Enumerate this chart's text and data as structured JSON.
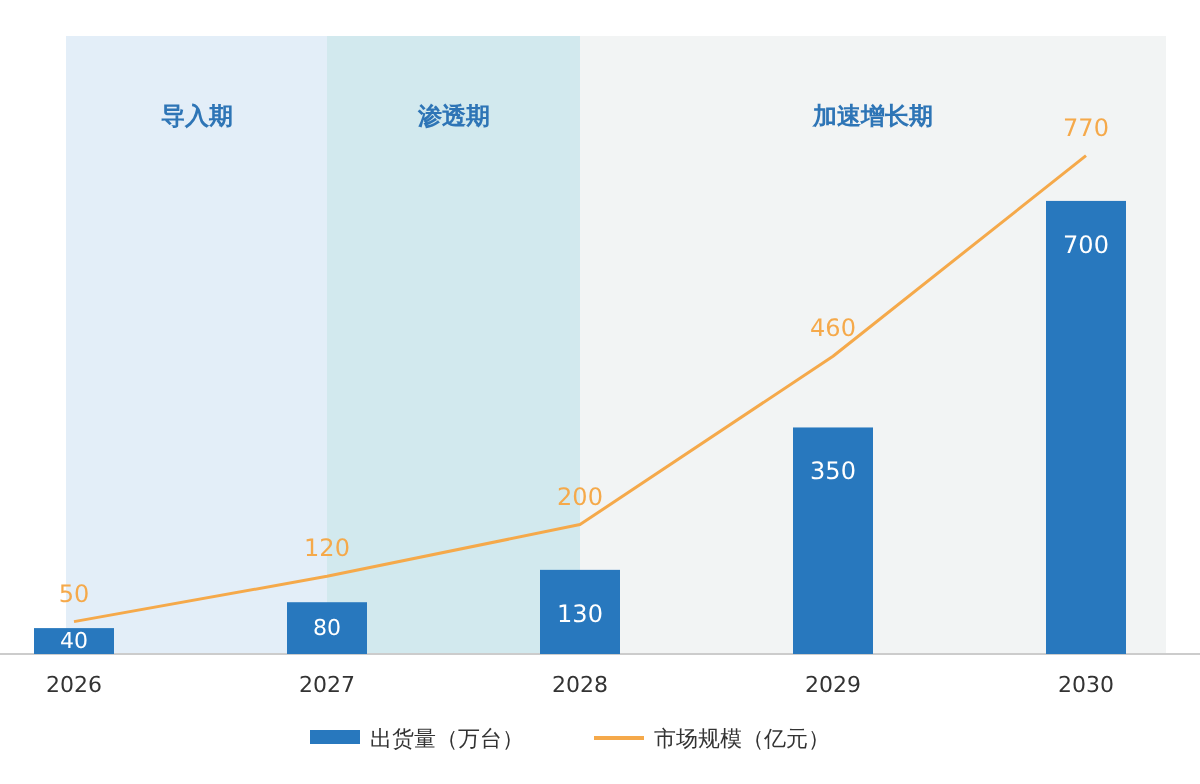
{
  "chart_data": {
    "type": "bar",
    "categories": [
      "2026",
      "2027",
      "2028",
      "2029",
      "2030"
    ],
    "series": [
      {
        "name": "出货量（万台）",
        "color": "#2878be",
        "values": [
          40,
          80,
          130,
          350,
          700
        ]
      },
      {
        "name": "市场规模（亿元）",
        "type": "line",
        "color": "#f5a94a",
        "values": [
          50,
          120,
          200,
          460,
          770
        ]
      }
    ],
    "bands": [
      {
        "axis": "x",
        "from": "2026",
        "to": "2027",
        "label": "导入期",
        "color": "#e3eef8"
      },
      {
        "axis": "x",
        "from": "2027",
        "to": "2028",
        "label": "渗透期",
        "color": "#d2e9ee"
      },
      {
        "axis": "x",
        "from": "2028",
        "to": "2030",
        "label": "加速增长期",
        "color": "#f2f4f4"
      }
    ],
    "data_labels": true,
    "legend": "bottom",
    "marker": "none"
  }
}
